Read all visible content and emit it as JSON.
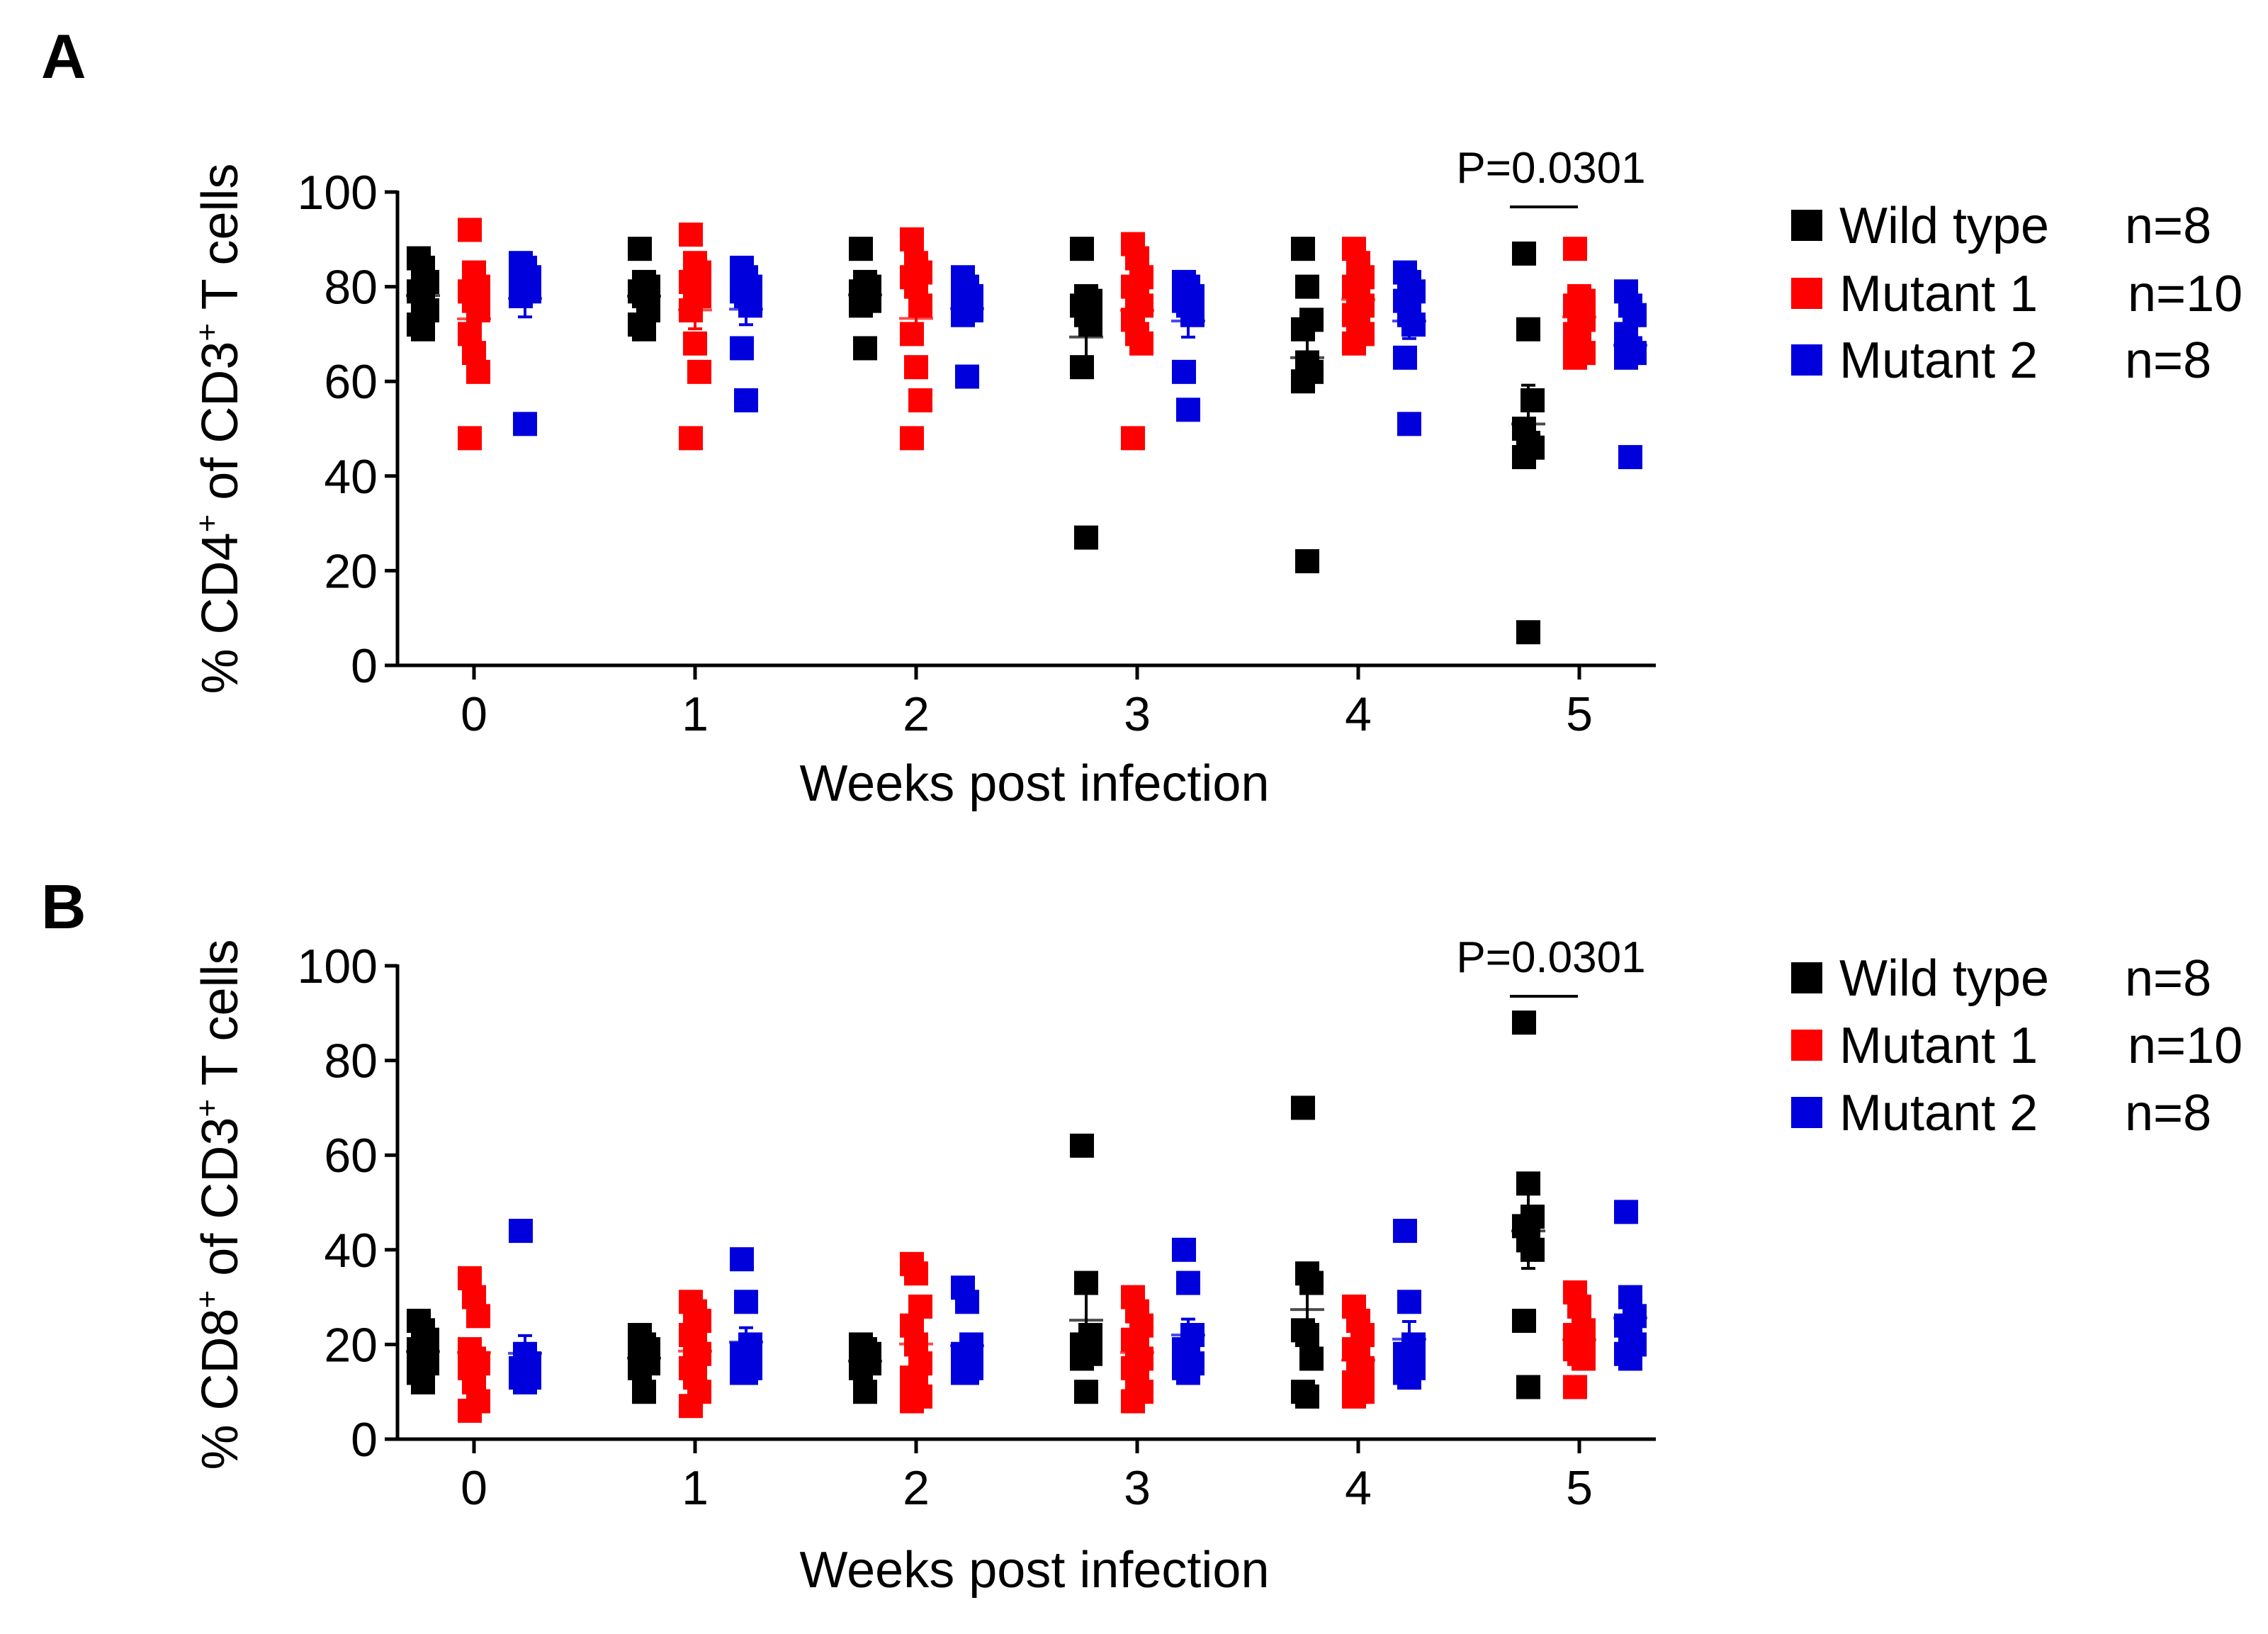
{
  "colors": {
    "Wild type": "#000000",
    "Mutant 1": "#ff0000",
    "Mutant 2": "#0000dd"
  },
  "chart_data": [
    {
      "panel_label": "A",
      "type": "scatter",
      "title": "",
      "xlabel": "Weeks post infection",
      "ylabel_parts": [
        "% CD4",
        "+",
        " of CD3",
        "+",
        " T cells"
      ],
      "x_ticks": [
        "0",
        "1",
        "2",
        "3",
        "4",
        "5"
      ],
      "y_ticks": [
        "0",
        "20",
        "40",
        "60",
        "80",
        "100"
      ],
      "ylim": [
        0,
        100
      ],
      "annotation": "P=0.0301",
      "annotation_week": 5,
      "legend": [
        {
          "name": "Wild type",
          "n": "n=8"
        },
        {
          "name": "Mutant 1",
          "n": "n=10"
        },
        {
          "name": "Mutant 2",
          "n": "n=8"
        }
      ],
      "series": [
        {
          "name": "Wild type",
          "values": [
            [
              86,
              84,
              81,
              79,
              77,
              75,
              72,
              71
            ],
            [
              88,
              81,
              80,
              79,
              78,
              75,
              72,
              71
            ],
            [
              88,
              81,
              80,
              79,
              78,
              77,
              76,
              67
            ],
            [
              88,
              78,
              77,
              76,
              74,
              72,
              63,
              27
            ],
            [
              88,
              80,
              73,
              71,
              64,
              62,
              60,
              22
            ],
            [
              87,
              71,
              56,
              50,
              47,
              46,
              44,
              7
            ]
          ]
        },
        {
          "name": "Mutant 1",
          "values": [
            [
              92,
              83,
              80,
              79,
              77,
              75,
              70,
              66,
              62,
              48
            ],
            [
              91,
              85,
              83,
              81,
              80,
              78,
              75,
              68,
              62,
              48
            ],
            [
              90,
              85,
              83,
              82,
              80,
              76,
              70,
              63,
              56,
              48
            ],
            [
              89,
              86,
              82,
              80,
              78,
              76,
              73,
              70,
              68,
              48
            ],
            [
              88,
              85,
              82,
              80,
              78,
              76,
              74,
              72,
              70,
              68
            ],
            [
              88,
              78,
              77,
              76,
              75,
              73,
              70,
              68,
              66,
              65
            ]
          ]
        },
        {
          "name": "Mutant 2",
          "values": [
            [
              85,
              84,
              82,
              81,
              80,
              79,
              78,
              51
            ],
            [
              84,
              82,
              80,
              79,
              78,
              76,
              67,
              56
            ],
            [
              82,
              80,
              78,
              77,
              76,
              75,
              74,
              61
            ],
            [
              81,
              80,
              78,
              77,
              76,
              74,
              62,
              54
            ],
            [
              83,
              81,
              79,
              77,
              74,
              72,
              65,
              51
            ],
            [
              79,
              76,
              74,
              70,
              67,
              66,
              65,
              44
            ]
          ]
        }
      ]
    },
    {
      "panel_label": "B",
      "type": "scatter",
      "title": "",
      "xlabel": "Weeks post infection",
      "ylabel_parts": [
        "% CD8",
        "+",
        " of CD3",
        "+",
        " T cells"
      ],
      "x_ticks": [
        "0",
        "1",
        "2",
        "3",
        "4",
        "5"
      ],
      "y_ticks": [
        "0",
        "20",
        "40",
        "60",
        "80",
        "100"
      ],
      "ylim": [
        0,
        100
      ],
      "annotation": "P=0.0301",
      "annotation_week": 5,
      "legend": [
        {
          "name": "Wild type",
          "n": "n=8"
        },
        {
          "name": "Mutant 1",
          "n": "n=10"
        },
        {
          "name": "Mutant 2",
          "n": "n=8"
        }
      ],
      "series": [
        {
          "name": "Wild type",
          "values": [
            [
              25,
              23,
              21,
              19,
              18,
              16,
              14,
              12
            ],
            [
              22,
              20,
              19,
              18,
              17,
              16,
              15,
              10
            ],
            [
              20,
              19,
              18,
              17,
              17,
              16,
              15,
              10
            ],
            [
              62,
              33,
              22,
              20,
              19,
              18,
              17,
              10
            ],
            [
              70,
              35,
              33,
              23,
              22,
              17,
              10,
              9
            ],
            [
              88,
              54,
              47,
              45,
              42,
              40,
              25,
              11
            ]
          ]
        },
        {
          "name": "Mutant 1",
          "values": [
            [
              34,
              30,
              26,
              19,
              17,
              16,
              15,
              12,
              8,
              6
            ],
            [
              29,
              27,
              25,
              22,
              20,
              18,
              15,
              13,
              10,
              7
            ],
            [
              37,
              35,
              28,
              24,
              20,
              16,
              13,
              11,
              9,
              8
            ],
            [
              30,
              27,
              24,
              21,
              19,
              17,
              15,
              12,
              10,
              8
            ],
            [
              28,
              25,
              22,
              19,
              17,
              15,
              12,
              10,
              10,
              9
            ],
            [
              31,
              28,
              23,
              22,
              21,
              20,
              19,
              18,
              17,
              11
            ]
          ]
        },
        {
          "name": "Mutant 2",
          "values": [
            [
              44,
              18,
              16,
              15,
              14,
              13,
              13,
              12
            ],
            [
              38,
              29,
              20,
              18,
              16,
              15,
              14,
              14
            ],
            [
              32,
              29,
              20,
              18,
              16,
              15,
              14,
              14
            ],
            [
              40,
              33,
              22,
              19,
              17,
              16,
              15,
              14
            ],
            [
              44,
              29,
              20,
              18,
              16,
              15,
              14,
              13
            ],
            [
              48,
              30,
              26,
              24,
              22,
              20,
              18,
              17
            ]
          ]
        }
      ]
    }
  ]
}
